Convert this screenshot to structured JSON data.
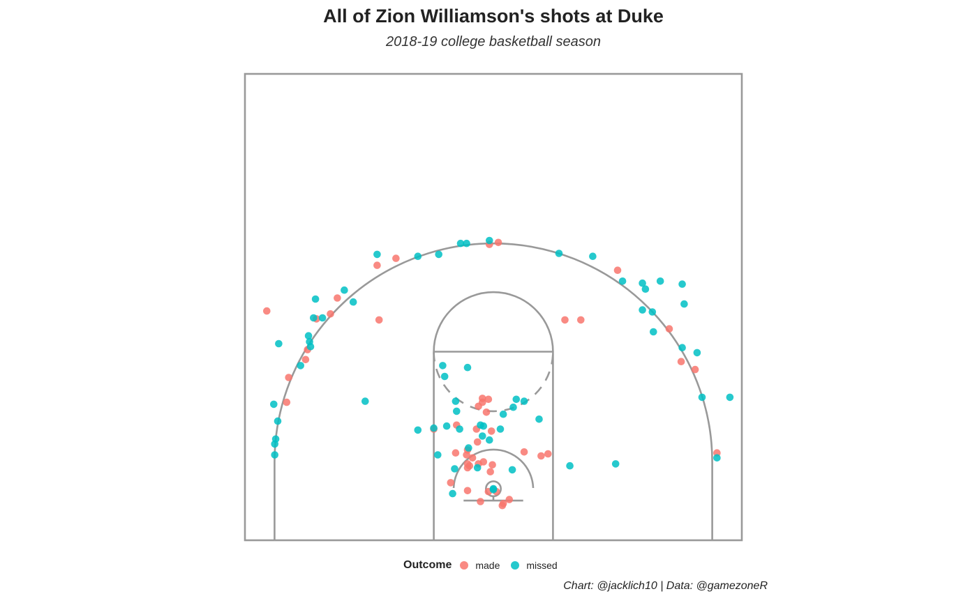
{
  "chart_data": {
    "type": "scatter",
    "title": "All of Zion Williamson's shots at Duke",
    "subtitle": "2018-19 college basketball season",
    "caption": "Chart: @jacklich10 | Data: @gamezoneR",
    "legend": {
      "title": "Outcome",
      "position": "bottom"
    },
    "x_range": [
      -25,
      25
    ],
    "y_range": [
      0,
      47
    ],
    "grid": false,
    "series": [
      {
        "name": "made",
        "color": "#F8766D",
        "points": [
          [
            -22.8,
            23.1
          ],
          [
            -20.8,
            13.9
          ],
          [
            -20.6,
            16.4
          ],
          [
            -18.9,
            18.2
          ],
          [
            -18.7,
            19.2
          ],
          [
            -17.8,
            22.3
          ],
          [
            -16.4,
            22.8
          ],
          [
            -15.7,
            24.4
          ],
          [
            -11.7,
            27.7
          ],
          [
            -11.5,
            22.2
          ],
          [
            -9.8,
            28.4
          ],
          [
            -0.4,
            29.8
          ],
          [
            0.5,
            30.0
          ],
          [
            7.2,
            22.2
          ],
          [
            8.8,
            22.2
          ],
          [
            12.5,
            27.2
          ],
          [
            17.7,
            21.3
          ],
          [
            18.9,
            18.0
          ],
          [
            20.3,
            17.2
          ],
          [
            22.5,
            8.8
          ],
          [
            -6.0,
            11.2
          ],
          [
            -3.7,
            11.6
          ],
          [
            -2.6,
            9.1
          ],
          [
            -2.7,
            8.6
          ],
          [
            -2.4,
            7.5
          ],
          [
            -2.6,
            7.7
          ],
          [
            -2.1,
            8.3
          ],
          [
            -1.6,
            9.9
          ],
          [
            -1.7,
            11.2
          ],
          [
            -1.5,
            13.5
          ],
          [
            -1.1,
            14.3
          ],
          [
            -1.1,
            13.9
          ],
          [
            -0.5,
            14.2
          ],
          [
            -0.7,
            12.9
          ],
          [
            -0.2,
            11.0
          ],
          [
            -1.5,
            7.7
          ],
          [
            -1.0,
            7.9
          ],
          [
            -0.3,
            6.9
          ],
          [
            -0.1,
            7.6
          ],
          [
            -3.8,
            8.8
          ],
          [
            -4.3,
            5.8
          ],
          [
            -2.6,
            7.3
          ],
          [
            -2.6,
            5.0
          ],
          [
            -1.3,
            3.9
          ],
          [
            -0.5,
            4.9
          ],
          [
            0.3,
            4.9
          ],
          [
            1.0,
            3.7
          ],
          [
            0.9,
            3.5
          ],
          [
            1.6,
            4.1
          ],
          [
            3.1,
            8.9
          ],
          [
            4.8,
            8.5
          ],
          [
            5.5,
            8.7
          ]
        ]
      },
      {
        "name": "missed",
        "color": "#00BFC4",
        "points": [
          [
            -22.0,
            9.7
          ],
          [
            -21.9,
            10.2
          ],
          [
            -22.1,
            13.7
          ],
          [
            -22.0,
            8.6
          ],
          [
            -21.7,
            12.0
          ],
          [
            -21.6,
            19.8
          ],
          [
            -19.4,
            17.6
          ],
          [
            -18.6,
            20.6
          ],
          [
            -18.4,
            19.5
          ],
          [
            -18.5,
            20.0
          ],
          [
            -18.1,
            22.4
          ],
          [
            -17.9,
            24.3
          ],
          [
            -17.2,
            22.4
          ],
          [
            -15.0,
            25.2
          ],
          [
            -14.1,
            24.0
          ],
          [
            -11.7,
            28.8
          ],
          [
            -7.6,
            28.6
          ],
          [
            -5.5,
            28.8
          ],
          [
            -3.3,
            29.9
          ],
          [
            -2.7,
            29.9
          ],
          [
            -0.4,
            30.2
          ],
          [
            6.6,
            28.9
          ],
          [
            10.0,
            28.6
          ],
          [
            13.0,
            26.1
          ],
          [
            15.0,
            25.9
          ],
          [
            15.3,
            25.3
          ],
          [
            16.8,
            26.1
          ],
          [
            19.0,
            25.8
          ],
          [
            19.2,
            23.8
          ],
          [
            15.0,
            23.2
          ],
          [
            16.1,
            21.0
          ],
          [
            16.0,
            23.0
          ],
          [
            19.0,
            19.4
          ],
          [
            20.5,
            18.9
          ],
          [
            21.0,
            14.4
          ],
          [
            23.8,
            14.4
          ],
          [
            22.5,
            8.3
          ],
          [
            -12.9,
            14.0
          ],
          [
            -7.6,
            11.1
          ],
          [
            -6.0,
            11.3
          ],
          [
            -5.6,
            8.6
          ],
          [
            -4.7,
            11.5
          ],
          [
            -3.8,
            14.0
          ],
          [
            -4.9,
            16.5
          ],
          [
            -5.1,
            17.6
          ],
          [
            -2.6,
            17.4
          ],
          [
            -3.7,
            13.0
          ],
          [
            -3.4,
            11.2
          ],
          [
            -1.0,
            11.5
          ],
          [
            -1.3,
            11.6
          ],
          [
            -1.1,
            10.5
          ],
          [
            -0.4,
            10.1
          ],
          [
            0.7,
            11.2
          ],
          [
            1.0,
            12.7
          ],
          [
            2.0,
            13.4
          ],
          [
            2.3,
            14.2
          ],
          [
            3.1,
            14.0
          ],
          [
            4.6,
            12.2
          ],
          [
            -3.9,
            7.2
          ],
          [
            -2.5,
            9.3
          ],
          [
            -1.6,
            7.3
          ],
          [
            -4.1,
            4.7
          ],
          [
            1.9,
            7.1
          ],
          [
            7.7,
            7.5
          ],
          [
            12.3,
            7.7
          ],
          [
            0,
            5.1
          ],
          [
            0,
            5.2
          ]
        ]
      }
    ]
  }
}
